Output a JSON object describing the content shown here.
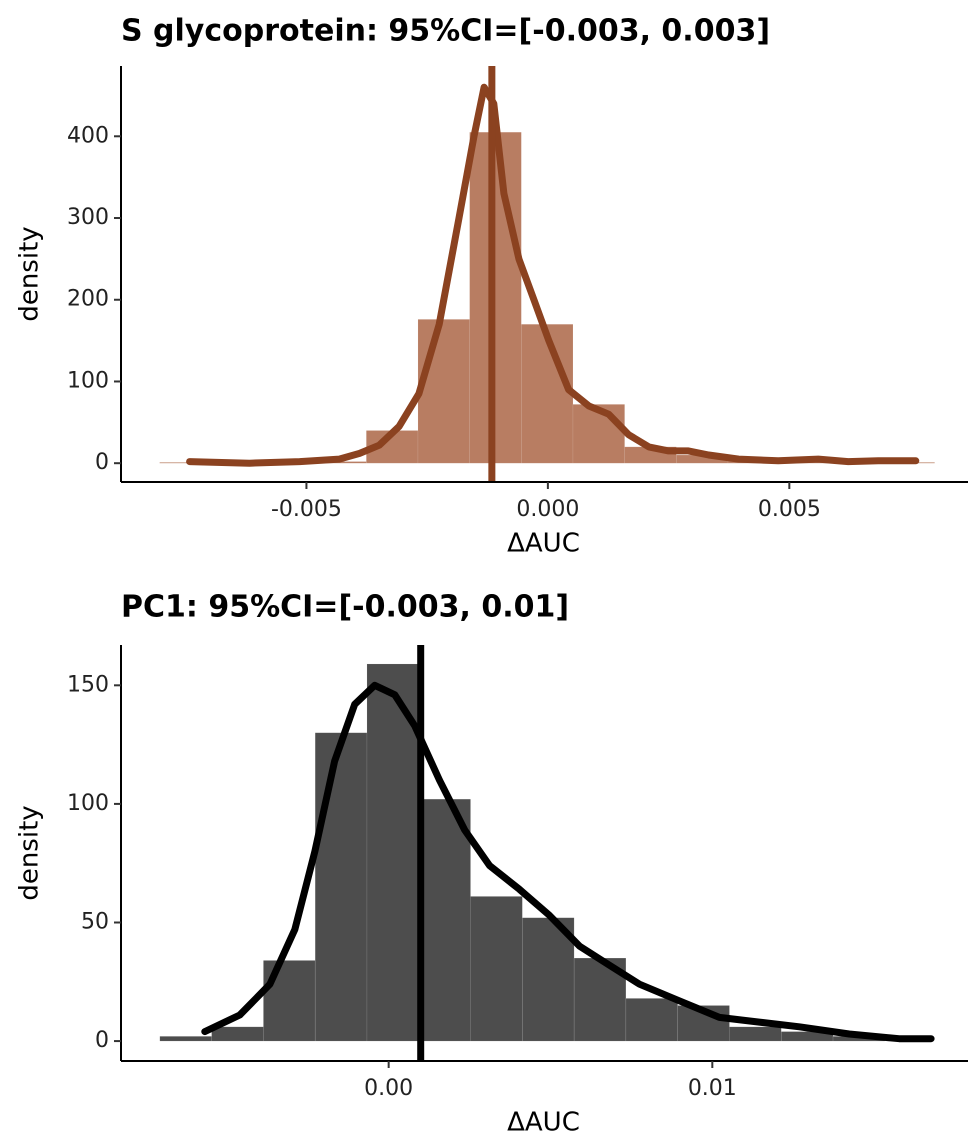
{
  "chart_data": [
    {
      "type": "histogram",
      "title": "S glycoprotein: 95%CI=[-0.003, 0.003]",
      "x_label": "ΔAUC",
      "y_label": "density",
      "bins": [
        -0.00804,
        -0.00697,
        -0.0059,
        -0.00483,
        -0.00376,
        -0.00269,
        -0.00162,
        -0.00055,
        0.00052,
        0.00159,
        0.00266,
        0.00373,
        0.0048,
        0.00587,
        0.00694,
        0.00801
      ],
      "values": [
        1,
        0,
        1,
        2,
        40,
        176,
        405,
        170,
        72,
        20,
        10,
        3,
        1,
        1,
        1
      ],
      "color": "#a0522d",
      "density_curve": {
        "color": "#8b4220",
        "x": [
          -0.00742,
          -0.00618,
          -0.00514,
          -0.00432,
          -0.0039,
          -0.00349,
          -0.00308,
          -0.00267,
          -0.00225,
          -0.00184,
          -0.00153,
          -0.00132,
          -0.00112,
          -0.00091,
          -0.0006,
          -0.00029,
          2e-05,
          0.00043,
          0.00085,
          0.00126,
          0.00167,
          0.00209,
          0.0025,
          0.00291,
          0.00333,
          0.00395,
          0.00477,
          0.0056,
          0.00622,
          0.00684,
          0.00762
        ],
        "values": [
          2,
          0,
          2,
          5,
          12,
          22,
          45,
          85,
          170,
          300,
          400,
          460,
          440,
          330,
          250,
          200,
          150,
          90,
          70,
          60,
          35,
          20,
          15,
          15,
          10,
          5,
          3,
          5,
          2,
          3,
          3
        ]
      },
      "vline": -0.00116,
      "xlim": [
        -0.00884,
        0.0087
      ],
      "ylim": [
        -23,
        486
      ],
      "xticks": [
        -0.005,
        {
          "value": 0,
          "label": "0.000"
        },
        0.005
      ],
      "yticks": [
        0,
        100,
        200,
        300,
        400
      ]
    },
    {
      "type": "histogram",
      "title": "PC1: 95%CI=[-0.003, 0.01]",
      "x_label": "ΔAUC",
      "y_label": "density",
      "bins": [
        -0.00707,
        -0.00547,
        -0.00387,
        -0.00227,
        -0.00067,
        0.00093,
        0.00253,
        0.00413,
        0.00573,
        0.00733,
        0.00893,
        0.01053,
        0.01213,
        0.01373,
        0.01533
      ],
      "values": [
        2,
        6,
        34,
        130,
        159,
        102,
        61,
        52,
        35,
        18,
        15,
        6,
        4,
        2
      ],
      "color": "#4d4d4d",
      "density_curve": {
        "color": "#000000",
        "x": [
          -0.00568,
          -0.0046,
          -0.00367,
          -0.0029,
          -0.00228,
          -0.00167,
          -0.00105,
          -0.00043,
          0.00019,
          0.0008,
          0.00157,
          0.00235,
          0.00312,
          0.00404,
          0.00497,
          0.0059,
          0.00682,
          0.00775,
          0.00898,
          0.01022,
          0.01145,
          0.01269,
          0.01423,
          0.01577,
          0.01676
        ],
        "values": [
          4,
          11,
          24,
          47,
          80,
          118,
          142,
          150,
          146,
          133,
          110,
          89,
          74,
          64,
          53,
          40,
          32,
          24,
          17,
          10,
          8,
          6,
          3,
          1,
          1
        ]
      },
      "vline": 0.00099,
      "xlim": [
        -0.00827,
        0.0179
      ],
      "ylim": [
        -8.4,
        167
      ],
      "xticks": [
        {
          "value": 0,
          "label": "0.00"
        },
        0.01
      ],
      "yticks": [
        0,
        50,
        100,
        150
      ]
    }
  ]
}
